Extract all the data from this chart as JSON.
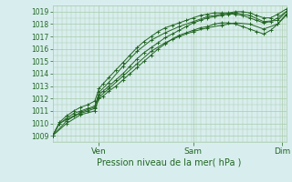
{
  "title": "",
  "xlabel": "Pression niveau de la mer( hPa )",
  "bg_color": "#d8eeee",
  "grid_color": "#aaccaa",
  "line_color": "#226622",
  "marker_color": "#226622",
  "tick_color": "#226622",
  "label_color": "#226622",
  "ylim": [
    1008.5,
    1019.5
  ],
  "yticks": [
    1009,
    1010,
    1011,
    1012,
    1013,
    1014,
    1015,
    1016,
    1017,
    1018,
    1019
  ],
  "xlim": [
    0,
    166
  ],
  "xtick_pos": [
    33,
    100,
    163
  ],
  "xtick_labels": [
    "Ven",
    "Sam",
    "Dim"
  ],
  "lines": [
    [
      0,
      1009.0,
      5,
      1010.0,
      10,
      1010.4,
      15,
      1010.8,
      20,
      1011.0,
      25,
      1011.2,
      30,
      1011.4,
      33,
      1012.3,
      36,
      1012.6,
      40,
      1013.0,
      45,
      1013.5,
      50,
      1014.0,
      55,
      1014.6,
      60,
      1015.2,
      65,
      1015.7,
      70,
      1016.1,
      75,
      1016.5,
      80,
      1016.9,
      85,
      1017.2,
      90,
      1017.5,
      95,
      1017.8,
      100,
      1018.1,
      105,
      1018.3,
      110,
      1018.5,
      115,
      1018.6,
      120,
      1018.7,
      125,
      1018.8,
      130,
      1018.8,
      135,
      1018.7,
      140,
      1018.5,
      145,
      1018.3,
      150,
      1018.1,
      155,
      1018.2,
      160,
      1018.5,
      166,
      1019.0
    ],
    [
      0,
      1009.0,
      5,
      1010.1,
      10,
      1010.6,
      15,
      1011.0,
      20,
      1011.3,
      25,
      1011.5,
      30,
      1011.8,
      33,
      1012.8,
      36,
      1013.2,
      40,
      1013.7,
      45,
      1014.3,
      50,
      1014.9,
      55,
      1015.5,
      60,
      1016.1,
      65,
      1016.6,
      70,
      1017.0,
      75,
      1017.4,
      80,
      1017.7,
      85,
      1017.9,
      90,
      1018.1,
      95,
      1018.3,
      100,
      1018.5,
      105,
      1018.7,
      110,
      1018.8,
      115,
      1018.9,
      120,
      1018.9,
      125,
      1018.9,
      130,
      1019.0,
      135,
      1019.0,
      140,
      1018.9,
      145,
      1018.7,
      150,
      1018.5,
      155,
      1018.5,
      160,
      1018.8,
      166,
      1019.2
    ],
    [
      0,
      1009.0,
      5,
      1010.0,
      10,
      1010.3,
      15,
      1010.6,
      20,
      1010.8,
      25,
      1011.0,
      30,
      1011.2,
      33,
      1012.0,
      36,
      1012.2,
      40,
      1012.6,
      45,
      1013.0,
      50,
      1013.5,
      55,
      1014.0,
      60,
      1014.5,
      65,
      1015.0,
      70,
      1015.5,
      75,
      1016.0,
      80,
      1016.4,
      85,
      1016.8,
      90,
      1017.1,
      95,
      1017.3,
      100,
      1017.5,
      105,
      1017.7,
      110,
      1017.8,
      115,
      1018.0,
      120,
      1018.1,
      125,
      1018.1,
      130,
      1018.0,
      135,
      1017.8,
      140,
      1017.6,
      145,
      1017.4,
      150,
      1017.2,
      155,
      1017.5,
      160,
      1018.0,
      166,
      1018.7
    ],
    [
      0,
      1009.0,
      10,
      1010.2,
      20,
      1010.9,
      30,
      1011.3,
      33,
      1012.5,
      40,
      1013.3,
      50,
      1014.6,
      60,
      1015.8,
      70,
      1016.7,
      80,
      1017.3,
      90,
      1017.8,
      100,
      1018.2,
      110,
      1018.6,
      120,
      1018.8,
      130,
      1018.9,
      140,
      1018.7,
      150,
      1018.2,
      160,
      1018.3,
      166,
      1019.0
    ],
    [
      0,
      1009.0,
      10,
      1010.0,
      20,
      1010.7,
      30,
      1011.0,
      33,
      1012.1,
      40,
      1012.8,
      50,
      1013.8,
      60,
      1014.8,
      70,
      1015.8,
      80,
      1016.5,
      90,
      1017.0,
      100,
      1017.4,
      110,
      1017.7,
      120,
      1017.9,
      130,
      1018.1,
      140,
      1018.0,
      150,
      1017.6,
      160,
      1018.0,
      166,
      1018.8
    ]
  ]
}
